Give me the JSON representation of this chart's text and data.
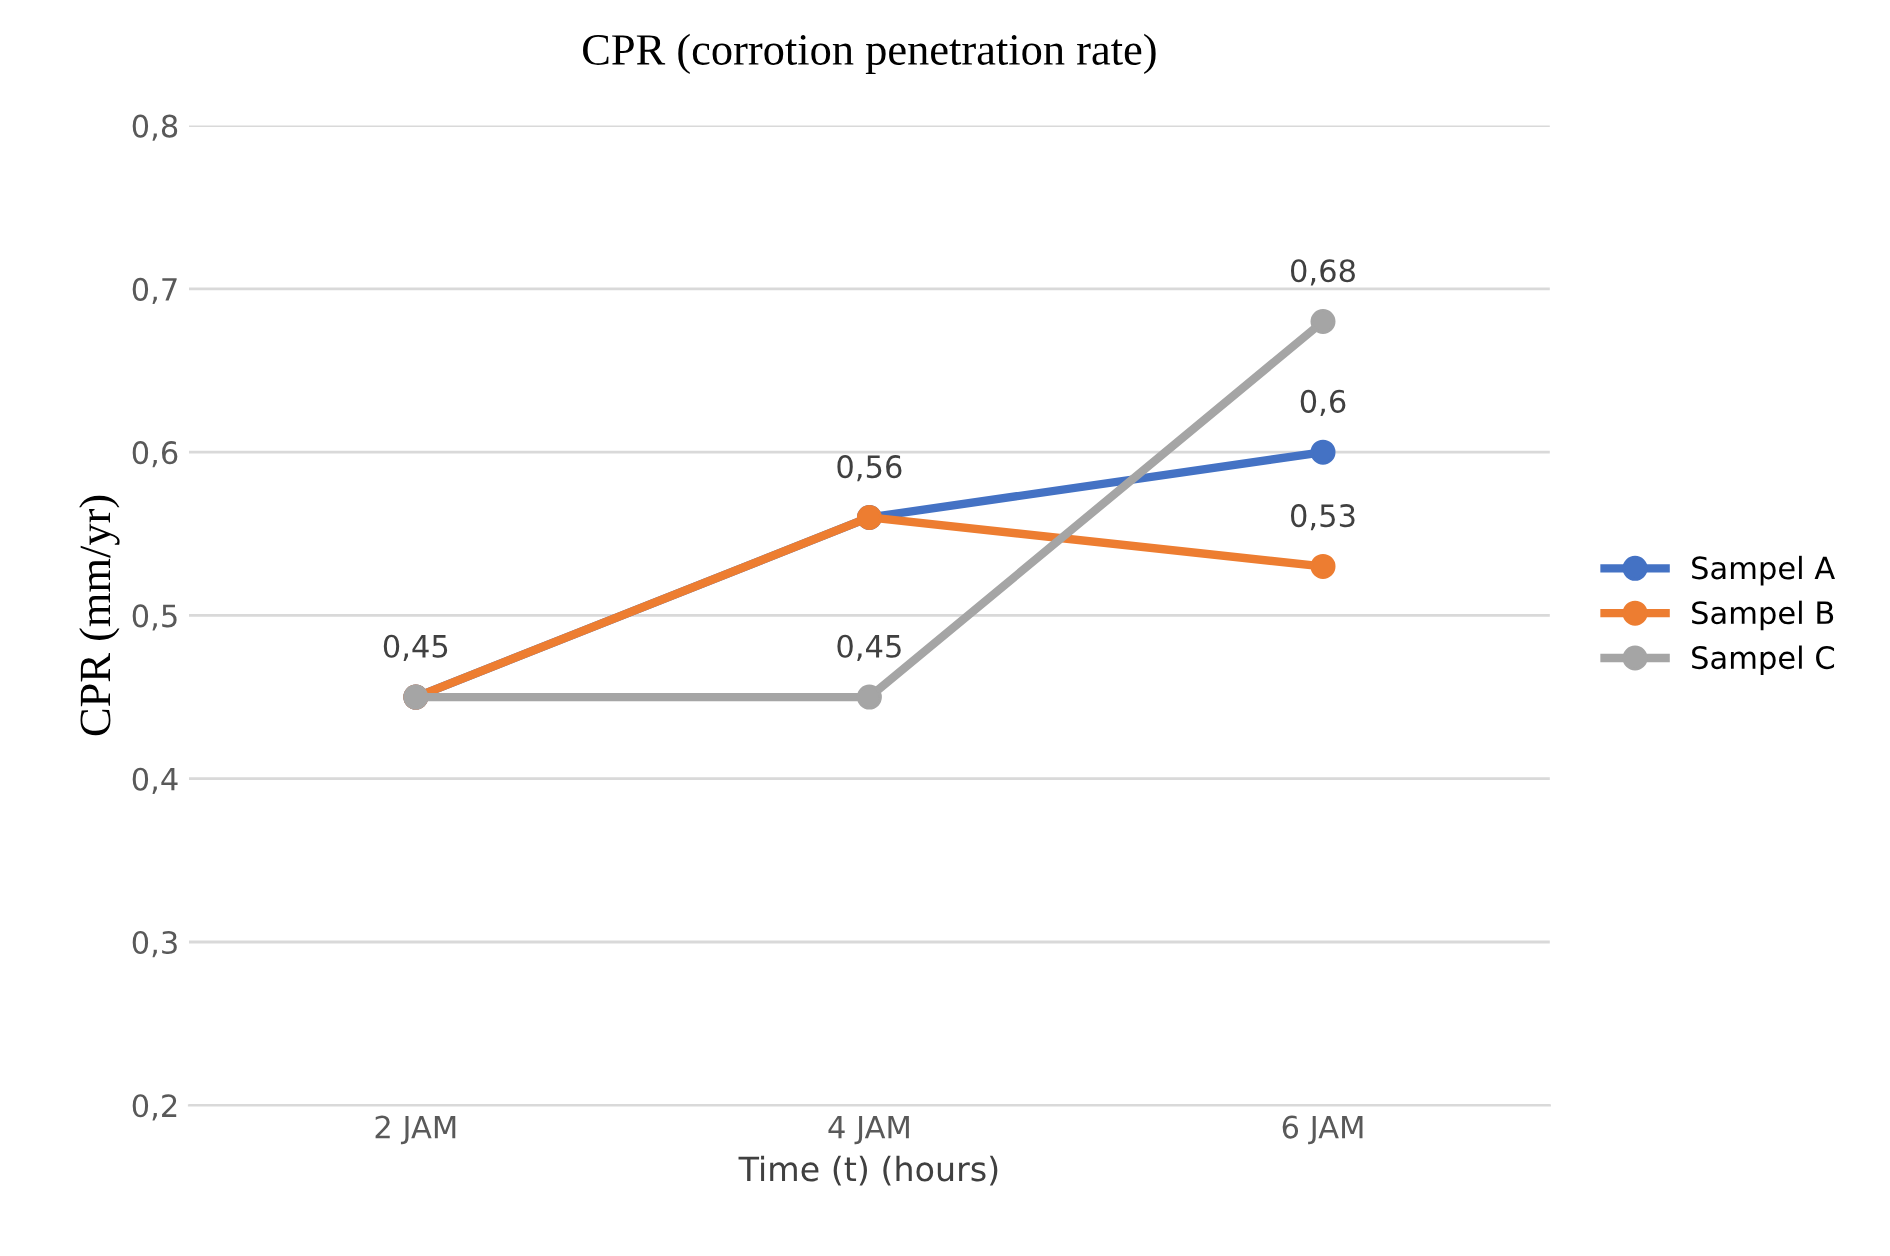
{
  "chart_data": {
    "type": "line",
    "title": "CPR (corrotion penetration rate)",
    "xlabel": "Time (t) (hours)",
    "ylabel": "CPR (mm/yr)",
    "categories": [
      "2 JAM",
      "4 JAM",
      "6 JAM"
    ],
    "series": [
      {
        "name": "Sampel A",
        "color": "#4472c4",
        "values": [
          0.45,
          0.56,
          0.6
        ],
        "value_labels": [
          null,
          null,
          "0,6"
        ]
      },
      {
        "name": "Sampel B",
        "color": "#ed7d31",
        "values": [
          0.45,
          0.56,
          0.53
        ],
        "value_labels": [
          null,
          "0,56",
          "0,53"
        ]
      },
      {
        "name": "Sampel C",
        "color": "#a5a5a5",
        "values": [
          0.45,
          0.45,
          0.68
        ],
        "value_labels": [
          "0,45",
          "0,45",
          "0,68"
        ]
      }
    ],
    "ylim": [
      0.2,
      0.8
    ],
    "yticks": [
      {
        "value": 0.2,
        "label": "0,2"
      },
      {
        "value": 0.3,
        "label": "0,3"
      },
      {
        "value": 0.4,
        "label": "0,4"
      },
      {
        "value": 0.5,
        "label": "0,5"
      },
      {
        "value": 0.6,
        "label": "0,6"
      },
      {
        "value": 0.7,
        "label": "0,7"
      },
      {
        "value": 0.8,
        "label": "0,8"
      }
    ],
    "grid": "y",
    "legend": "right",
    "marker": "circle",
    "line_style": "solid"
  }
}
